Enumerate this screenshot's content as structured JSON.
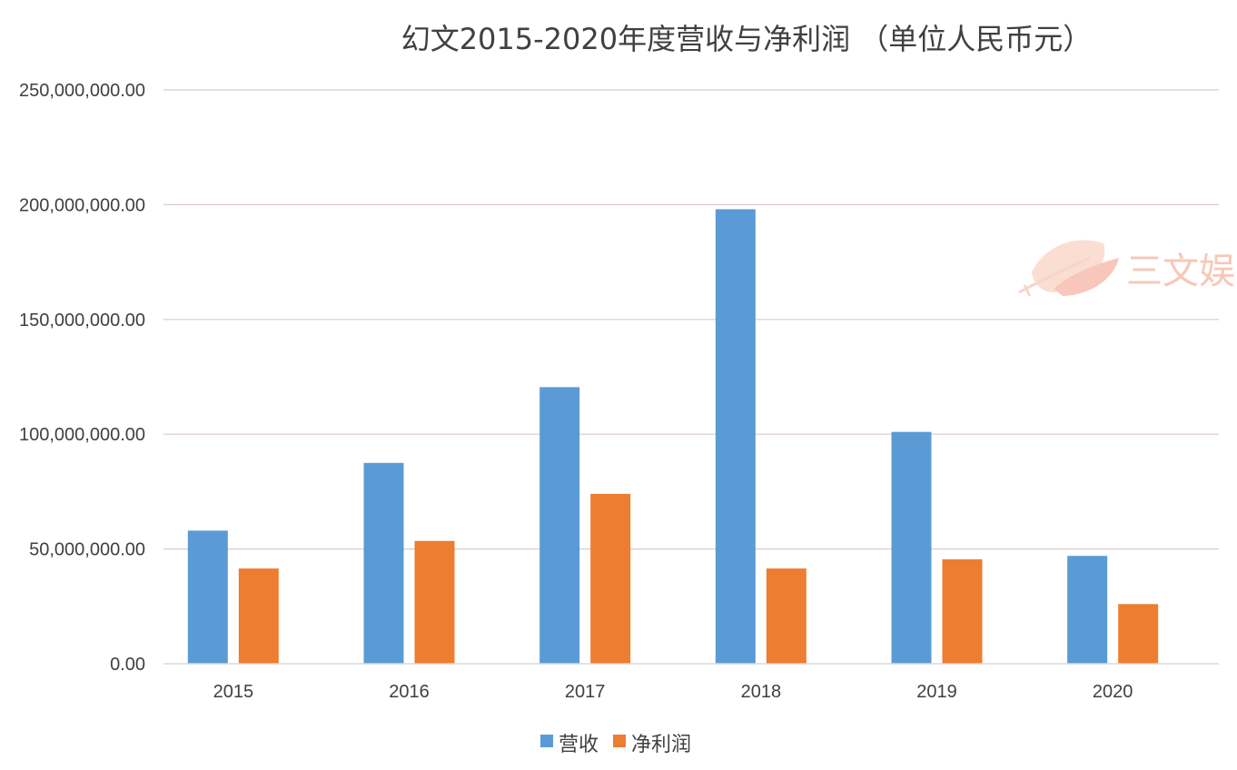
{
  "chart_data": {
    "type": "bar",
    "title": "幻文2015-2020年度营收与净利润 （单位人民币元）",
    "categories": [
      "2015",
      "2016",
      "2017",
      "2018",
      "2019",
      "2020"
    ],
    "series": [
      {
        "name": "营收",
        "color": "#5b9bd5",
        "values": [
          58000000,
          87500000,
          120500000,
          198000000,
          101000000,
          47000000
        ]
      },
      {
        "name": "净利润",
        "color": "#ed7d31",
        "values": [
          41500000,
          53500000,
          74000000,
          41500000,
          45500000,
          26000000
        ]
      }
    ],
    "ylim": [
      0,
      250000000
    ],
    "y_ticks": [
      {
        "value": 0,
        "label": "0.00"
      },
      {
        "value": 50000000,
        "label": "50,000,000.00"
      },
      {
        "value": 100000000,
        "label": "100,000,000.00"
      },
      {
        "value": 150000000,
        "label": "150,000,000.00"
      },
      {
        "value": 200000000,
        "label": "200,000,000.00"
      },
      {
        "value": 250000000,
        "label": "250,000,000.00"
      }
    ],
    "grid": true,
    "gridline_color": "#dbc9cf",
    "legend_position": "bottom-center"
  },
  "watermark": {
    "text": "三文娱",
    "icon": "leaf-logo-icon",
    "color": "#f6c8b8"
  }
}
